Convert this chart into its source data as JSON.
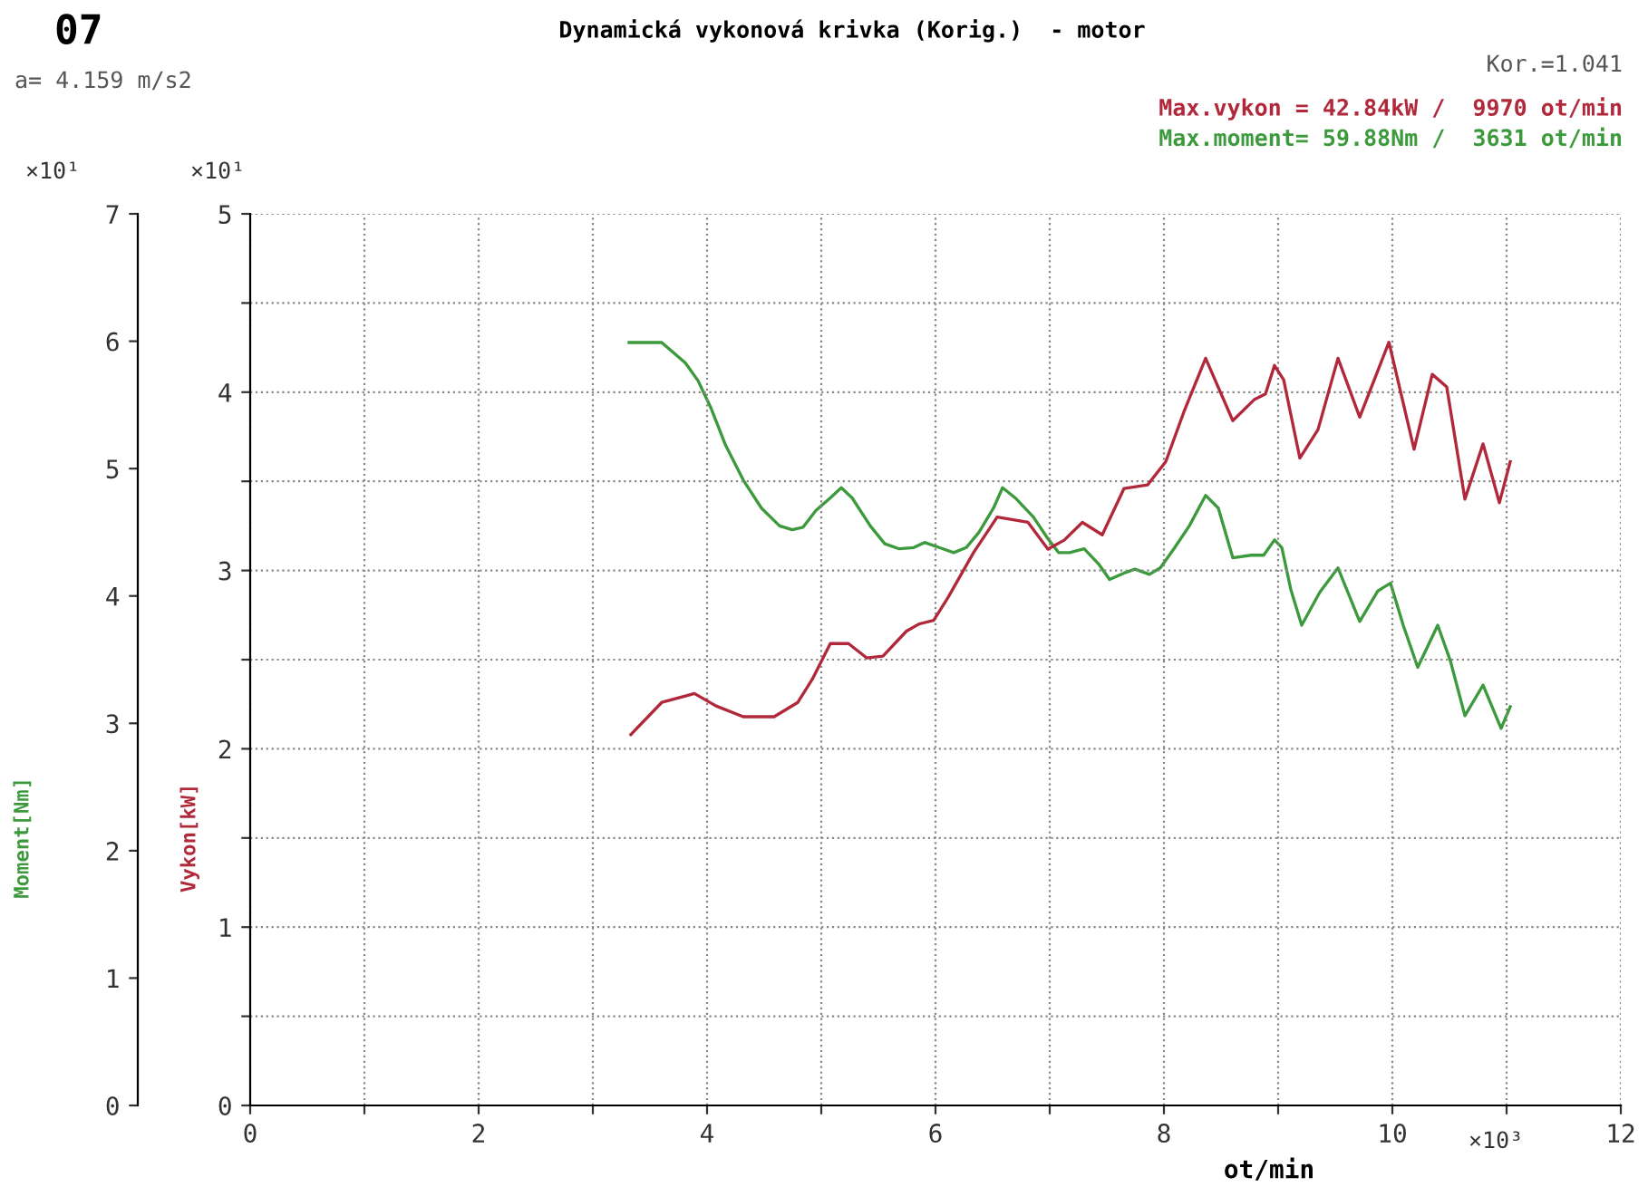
{
  "chart_data": {
    "type": "line",
    "title": "Dynamická vykonová krivka (Korig.)  - motor",
    "xlabel": "ot/min",
    "ylabel": "Vykon[kW]",
    "y2label": "Moment[Nm]",
    "annotations": [
      "07",
      "a= 4.159 m/s2",
      "Kor.=1.041",
      "Max.vykon = 42.84kW /  9970 ot/min",
      "Max.moment= 59.88Nm /  3631 ot/min",
      "×10¹",
      "×10¹",
      "×10³"
    ],
    "xlim": [
      0,
      12
    ],
    "xticks": [
      0,
      {
        "value": 1,
        "label": null
      },
      2,
      {
        "value": 3,
        "label": null
      },
      4,
      {
        "value": 5,
        "label": null
      },
      6,
      {
        "value": 7,
        "label": null
      },
      8,
      {
        "value": 9,
        "label": null
      },
      10,
      {
        "value": 11,
        "label": null
      },
      12
    ],
    "ylim": [
      0,
      5
    ],
    "yticks": [
      0,
      {
        "value": 0.5,
        "label": null
      },
      1,
      {
        "value": 1.5,
        "label": null
      },
      2,
      {
        "value": 2.5,
        "label": null
      },
      3,
      {
        "value": 3.5,
        "label": null
      },
      4,
      {
        "value": 4.5,
        "label": null
      },
      5
    ],
    "y2lim": [
      0,
      7
    ],
    "y2ticks": [
      0,
      1,
      2,
      3,
      4,
      5,
      6,
      7
    ],
    "grid": true,
    "legend": false,
    "marker": "none",
    "line_style": "solid",
    "series": [
      {
        "color": "#b0283a",
        "x": [
          3.333,
          3.603,
          3.889,
          4.079,
          4.317,
          4.587,
          4.794,
          4.921,
          5.079,
          5.238,
          5.397,
          5.54,
          5.746,
          5.857,
          5.984,
          6.111,
          6.333,
          6.54,
          6.81,
          6.984,
          7.127,
          7.286,
          7.46,
          7.651,
          7.857,
          8.016,
          8.175,
          8.365,
          8.603,
          8.794,
          8.889,
          8.968,
          9.048,
          9.19,
          9.349,
          9.524,
          9.714,
          9.97,
          10.19,
          10.349,
          10.476,
          10.635,
          10.794,
          10.937,
          11.032
        ],
        "values": [
          2.08,
          2.26,
          2.31,
          2.24,
          2.18,
          2.18,
          2.26,
          2.39,
          2.59,
          2.59,
          2.51,
          2.52,
          2.66,
          2.7,
          2.72,
          2.85,
          3.1,
          3.3,
          3.27,
          3.12,
          3.17,
          3.27,
          3.2,
          3.46,
          3.48,
          3.61,
          3.89,
          4.19,
          3.84,
          3.96,
          3.99,
          4.15,
          4.07,
          3.63,
          3.79,
          4.19,
          3.86,
          4.28,
          3.68,
          4.1,
          4.03,
          3.4,
          3.71,
          3.38,
          3.61
        ]
      },
      {
        "color": "#3c9a3c",
        "axis": "y2",
        "x": [
          3.317,
          3.603,
          3.81,
          3.921,
          4.032,
          4.159,
          4.317,
          4.476,
          4.635,
          4.746,
          4.841,
          4.952,
          5.079,
          5.175,
          5.27,
          5.429,
          5.556,
          5.683,
          5.81,
          5.905,
          6.032,
          6.159,
          6.27,
          6.381,
          6.508,
          6.587,
          6.698,
          6.857,
          6.984,
          7.079,
          7.175,
          7.302,
          7.429,
          7.524,
          7.651,
          7.746,
          7.873,
          7.968,
          8.095,
          8.222,
          8.365,
          8.476,
          8.603,
          8.762,
          8.873,
          8.968,
          9.032,
          9.111,
          9.206,
          9.365,
          9.524,
          9.619,
          9.714,
          9.873,
          9.984,
          10.095,
          10.222,
          10.397,
          10.508,
          10.635,
          10.794,
          10.952,
          11.032
        ],
        "values": [
          5.99,
          5.99,
          5.83,
          5.69,
          5.48,
          5.19,
          4.91,
          4.69,
          4.55,
          4.52,
          4.54,
          4.67,
          4.77,
          4.85,
          4.77,
          4.55,
          4.41,
          4.37,
          4.38,
          4.42,
          4.38,
          4.34,
          4.38,
          4.5,
          4.69,
          4.85,
          4.77,
          4.62,
          4.45,
          4.34,
          4.34,
          4.37,
          4.25,
          4.13,
          4.18,
          4.21,
          4.17,
          4.22,
          4.38,
          4.55,
          4.79,
          4.69,
          4.3,
          4.32,
          4.32,
          4.44,
          4.38,
          4.05,
          3.77,
          4.03,
          4.22,
          4.01,
          3.8,
          4.04,
          4.1,
          3.77,
          3.44,
          3.77,
          3.49,
          3.06,
          3.3,
          2.96,
          3.13
        ]
      }
    ]
  }
}
